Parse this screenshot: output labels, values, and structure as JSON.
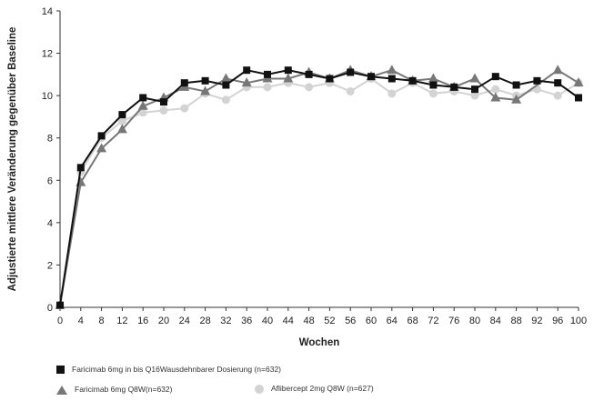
{
  "chart_data": {
    "type": "line",
    "xlabel": "Wochen",
    "ylabel": "Adjustierte mittlere Veränderung gegenüber Baseline",
    "xlim": [
      0,
      100
    ],
    "ylim": [
      0,
      14
    ],
    "x_ticks": [
      0,
      4,
      8,
      12,
      16,
      20,
      24,
      28,
      32,
      36,
      40,
      44,
      48,
      52,
      56,
      60,
      64,
      68,
      72,
      76,
      80,
      84,
      88,
      92,
      96,
      100
    ],
    "y_ticks": [
      0,
      2,
      4,
      6,
      8,
      10,
      12,
      14
    ],
    "grid": false,
    "legend_position": "bottom",
    "series": [
      {
        "name": "Faricimab 6mg in bis Q16Wausdehnbarer Dosierung (n=632)",
        "marker": "square",
        "color": "#111111",
        "x": [
          0,
          4,
          8,
          12,
          16,
          20,
          24,
          28,
          32,
          36,
          40,
          44,
          48,
          52,
          56,
          60,
          64,
          68,
          72,
          76,
          80,
          84,
          88,
          92,
          96,
          100
        ],
        "y": [
          0.1,
          6.6,
          8.1,
          9.1,
          9.9,
          9.7,
          10.6,
          10.7,
          10.5,
          11.2,
          11.0,
          11.2,
          11.0,
          10.8,
          11.1,
          10.9,
          10.8,
          10.7,
          10.5,
          10.4,
          10.3,
          10.9,
          10.5,
          10.7,
          10.6,
          9.9
        ]
      },
      {
        "name": "Faricimab 6mg Q8W(n=632)",
        "marker": "triangle",
        "color": "#777777",
        "x": [
          0,
          4,
          8,
          12,
          16,
          20,
          24,
          28,
          32,
          36,
          40,
          44,
          48,
          52,
          56,
          60,
          64,
          68,
          72,
          76,
          80,
          84,
          88,
          92,
          96,
          100
        ],
        "y": [
          0.1,
          5.9,
          7.5,
          8.4,
          9.5,
          9.9,
          10.4,
          10.2,
          10.8,
          10.6,
          10.8,
          10.8,
          11.1,
          10.8,
          11.2,
          10.9,
          11.2,
          10.7,
          10.8,
          10.4,
          10.8,
          9.9,
          9.8,
          null,
          11.2,
          10.6
        ]
      },
      {
        "name": "Aflibercept 2mg Q8W (n=627)",
        "marker": "circle",
        "color": "#d3d3d3",
        "x": [
          0,
          4,
          8,
          12,
          16,
          20,
          24,
          28,
          32,
          36,
          40,
          44,
          48,
          52,
          56,
          60,
          64,
          68,
          72,
          76,
          80,
          84,
          88,
          92,
          96,
          100
        ],
        "y": [
          0.1,
          6.4,
          8.0,
          8.8,
          9.2,
          9.3,
          9.4,
          10.1,
          9.8,
          10.4,
          10.4,
          10.6,
          10.4,
          10.6,
          10.2,
          10.8,
          10.1,
          10.6,
          10.1,
          10.2,
          10.0,
          10.3,
          10.0,
          10.3,
          10.0,
          10.6
        ]
      }
    ]
  }
}
